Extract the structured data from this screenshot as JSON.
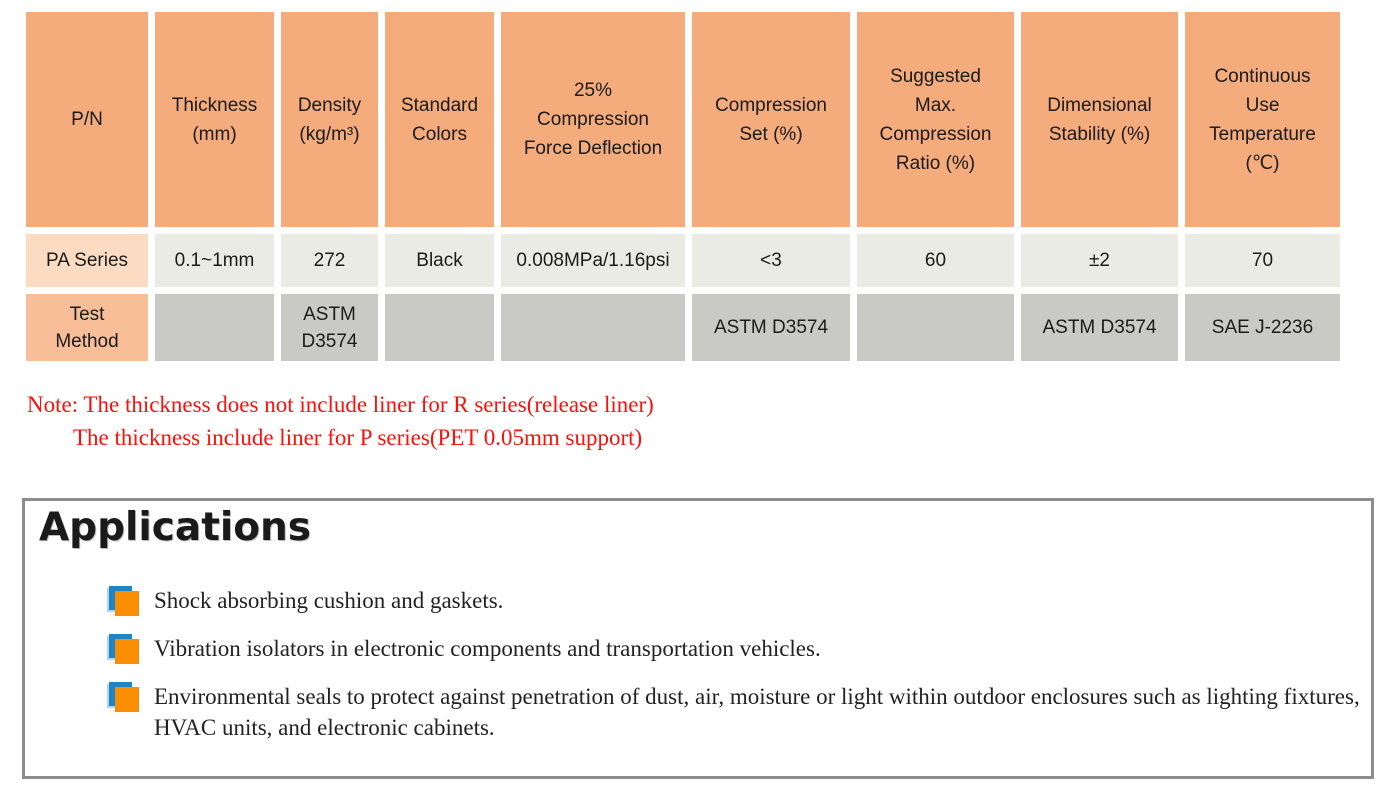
{
  "table": {
    "columns": [
      "P/N",
      "Thickness\n(mm)",
      "Density\n(kg/m³)",
      "Standard\nColors",
      "25%\nCompression\nForce Deflection",
      "Compression\nSet (%)",
      "Suggested\nMax.\nCompression\nRatio (%)",
      "Dimensional\nStability (%)",
      "Continuous\nUse\nTemperature\n(℃)"
    ],
    "product_row": {
      "label": "PA Series",
      "values": [
        "0.1~1mm",
        "272",
        "Black",
        "0.008MPa/1.16psi",
        "<3",
        "60",
        "±2",
        "70"
      ]
    },
    "test_row": {
      "label": "Test\nMethod",
      "values": [
        "",
        "ASTM D3574",
        "",
        "",
        "ASTM D3574",
        "",
        "ASTM D3574",
        "SAE J-2236"
      ]
    }
  },
  "note": {
    "line1": "Note: The thickness does not include liner for R series(release liner)",
    "line2": "The thickness include liner for P series(PET 0.05mm support)"
  },
  "applications": {
    "title": "Applications",
    "items": [
      "Shock absorbing cushion and gaskets.",
      "Vibration isolators in electronic components and transportation vehicles.",
      "Environmental seals to protect against penetration of dust, air, moisture or light within outdoor enclosures such as lighting fixtures, HVAC units, and electronic cabinets."
    ]
  },
  "colors": {
    "header-bg": "#F5AC7D",
    "pa-label-bg": "#FBDCC2",
    "test-label-bg": "#F7BE97",
    "data-bg": "#EBEBE6",
    "test-bg": "#C9C9C5",
    "note-red": "#FA100C",
    "box-border": "#8D8D8D",
    "bullet-blue": "#1E84C5",
    "bullet-orange": "#F98E00"
  }
}
